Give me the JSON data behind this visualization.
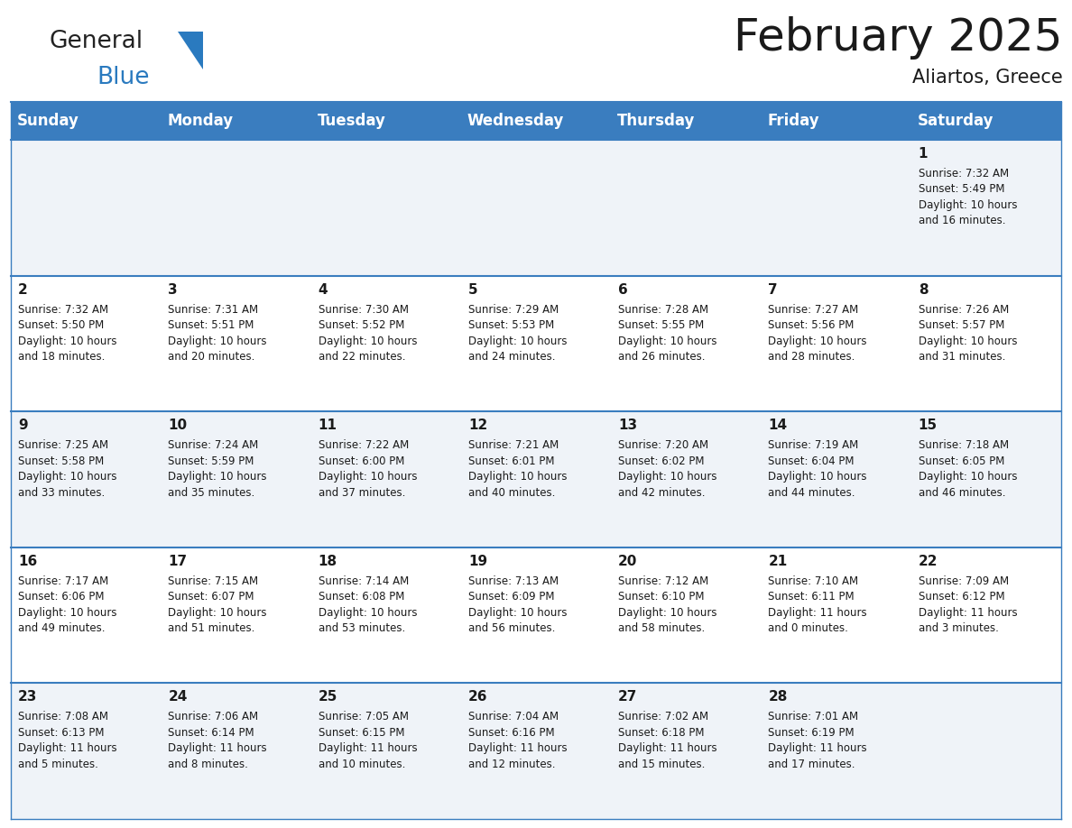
{
  "title": "February 2025",
  "subtitle": "Aliartos, Greece",
  "header_bg": "#3a7dbf",
  "header_text": "#ffffff",
  "row_bg_light": "#eff3f8",
  "row_bg_white": "#ffffff",
  "separator_color": "#3a7dbf",
  "day_headers": [
    "Sunday",
    "Monday",
    "Tuesday",
    "Wednesday",
    "Thursday",
    "Friday",
    "Saturday"
  ],
  "calendar_data": [
    [
      {
        "day": "",
        "sunrise": "",
        "sunset": "",
        "daylight": ""
      },
      {
        "day": "",
        "sunrise": "",
        "sunset": "",
        "daylight": ""
      },
      {
        "day": "",
        "sunrise": "",
        "sunset": "",
        "daylight": ""
      },
      {
        "day": "",
        "sunrise": "",
        "sunset": "",
        "daylight": ""
      },
      {
        "day": "",
        "sunrise": "",
        "sunset": "",
        "daylight": ""
      },
      {
        "day": "",
        "sunrise": "",
        "sunset": "",
        "daylight": ""
      },
      {
        "day": "1",
        "sunrise": "7:32 AM",
        "sunset": "5:49 PM",
        "daylight": "10 hours\nand 16 minutes."
      }
    ],
    [
      {
        "day": "2",
        "sunrise": "7:32 AM",
        "sunset": "5:50 PM",
        "daylight": "10 hours\nand 18 minutes."
      },
      {
        "day": "3",
        "sunrise": "7:31 AM",
        "sunset": "5:51 PM",
        "daylight": "10 hours\nand 20 minutes."
      },
      {
        "day": "4",
        "sunrise": "7:30 AM",
        "sunset": "5:52 PM",
        "daylight": "10 hours\nand 22 minutes."
      },
      {
        "day": "5",
        "sunrise": "7:29 AM",
        "sunset": "5:53 PM",
        "daylight": "10 hours\nand 24 minutes."
      },
      {
        "day": "6",
        "sunrise": "7:28 AM",
        "sunset": "5:55 PM",
        "daylight": "10 hours\nand 26 minutes."
      },
      {
        "day": "7",
        "sunrise": "7:27 AM",
        "sunset": "5:56 PM",
        "daylight": "10 hours\nand 28 minutes."
      },
      {
        "day": "8",
        "sunrise": "7:26 AM",
        "sunset": "5:57 PM",
        "daylight": "10 hours\nand 31 minutes."
      }
    ],
    [
      {
        "day": "9",
        "sunrise": "7:25 AM",
        "sunset": "5:58 PM",
        "daylight": "10 hours\nand 33 minutes."
      },
      {
        "day": "10",
        "sunrise": "7:24 AM",
        "sunset": "5:59 PM",
        "daylight": "10 hours\nand 35 minutes."
      },
      {
        "day": "11",
        "sunrise": "7:22 AM",
        "sunset": "6:00 PM",
        "daylight": "10 hours\nand 37 minutes."
      },
      {
        "day": "12",
        "sunrise": "7:21 AM",
        "sunset": "6:01 PM",
        "daylight": "10 hours\nand 40 minutes."
      },
      {
        "day": "13",
        "sunrise": "7:20 AM",
        "sunset": "6:02 PM",
        "daylight": "10 hours\nand 42 minutes."
      },
      {
        "day": "14",
        "sunrise": "7:19 AM",
        "sunset": "6:04 PM",
        "daylight": "10 hours\nand 44 minutes."
      },
      {
        "day": "15",
        "sunrise": "7:18 AM",
        "sunset": "6:05 PM",
        "daylight": "10 hours\nand 46 minutes."
      }
    ],
    [
      {
        "day": "16",
        "sunrise": "7:17 AM",
        "sunset": "6:06 PM",
        "daylight": "10 hours\nand 49 minutes."
      },
      {
        "day": "17",
        "sunrise": "7:15 AM",
        "sunset": "6:07 PM",
        "daylight": "10 hours\nand 51 minutes."
      },
      {
        "day": "18",
        "sunrise": "7:14 AM",
        "sunset": "6:08 PM",
        "daylight": "10 hours\nand 53 minutes."
      },
      {
        "day": "19",
        "sunrise": "7:13 AM",
        "sunset": "6:09 PM",
        "daylight": "10 hours\nand 56 minutes."
      },
      {
        "day": "20",
        "sunrise": "7:12 AM",
        "sunset": "6:10 PM",
        "daylight": "10 hours\nand 58 minutes."
      },
      {
        "day": "21",
        "sunrise": "7:10 AM",
        "sunset": "6:11 PM",
        "daylight": "11 hours\nand 0 minutes."
      },
      {
        "day": "22",
        "sunrise": "7:09 AM",
        "sunset": "6:12 PM",
        "daylight": "11 hours\nand 3 minutes."
      }
    ],
    [
      {
        "day": "23",
        "sunrise": "7:08 AM",
        "sunset": "6:13 PM",
        "daylight": "11 hours\nand 5 minutes."
      },
      {
        "day": "24",
        "sunrise": "7:06 AM",
        "sunset": "6:14 PM",
        "daylight": "11 hours\nand 8 minutes."
      },
      {
        "day": "25",
        "sunrise": "7:05 AM",
        "sunset": "6:15 PM",
        "daylight": "11 hours\nand 10 minutes."
      },
      {
        "day": "26",
        "sunrise": "7:04 AM",
        "sunset": "6:16 PM",
        "daylight": "11 hours\nand 12 minutes."
      },
      {
        "day": "27",
        "sunrise": "7:02 AM",
        "sunset": "6:18 PM",
        "daylight": "11 hours\nand 15 minutes."
      },
      {
        "day": "28",
        "sunrise": "7:01 AM",
        "sunset": "6:19 PM",
        "daylight": "11 hours\nand 17 minutes."
      },
      {
        "day": "",
        "sunrise": "",
        "sunset": "",
        "daylight": ""
      }
    ]
  ],
  "logo_text_general": "General",
  "logo_text_blue": "Blue",
  "logo_color_general": "#222222",
  "logo_color_blue": "#2a7abf",
  "logo_triangle_color": "#2a7abf",
  "title_fontsize": 36,
  "subtitle_fontsize": 15,
  "header_fontsize": 12,
  "day_num_fontsize": 11,
  "cell_text_fontsize": 8.5
}
